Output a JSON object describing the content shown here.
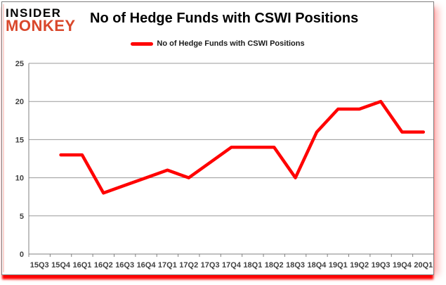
{
  "page": {
    "background": "#ffffff"
  },
  "card": {
    "border_color": "#7f7f7f",
    "shadow_color": "#ff0000"
  },
  "logo": {
    "line1": "INSIDER",
    "line2": "MONKEY",
    "line1_color": "#000000",
    "line2_color": "#d9472b"
  },
  "header": {
    "title": "No of Hedge Funds with CSWI Positions"
  },
  "legend": {
    "label": "No of Hedge Funds with CSWI Positions",
    "swatch_color": "#ff0000"
  },
  "chart_data": {
    "type": "line",
    "title": "No of Hedge Funds with CSWI Positions",
    "categories": [
      "15Q3",
      "15Q4",
      "16Q1",
      "16Q2",
      "16Q3",
      "16Q4",
      "17Q1",
      "17Q2",
      "17Q3",
      "17Q4",
      "18Q1",
      "18Q2",
      "18Q3",
      "18Q4",
      "19Q1",
      "19Q2",
      "19Q3",
      "19Q4",
      "20Q1"
    ],
    "series": [
      {
        "name": "No of Hedge Funds with CSWI Positions",
        "color": "#ff0000",
        "values": [
          null,
          13,
          13,
          8,
          9,
          10,
          11,
          10,
          12,
          14,
          14,
          14,
          10,
          16,
          19,
          19,
          20,
          16,
          16
        ]
      }
    ],
    "ylim": [
      0,
      25
    ],
    "yticks": [
      0,
      5,
      10,
      15,
      20,
      25
    ],
    "grid": true,
    "legend_position": "top-center",
    "grid_color": "#9a9a9a",
    "axis_color": "#808080",
    "tick_label_color": "#404040",
    "line_width": 4.5
  }
}
